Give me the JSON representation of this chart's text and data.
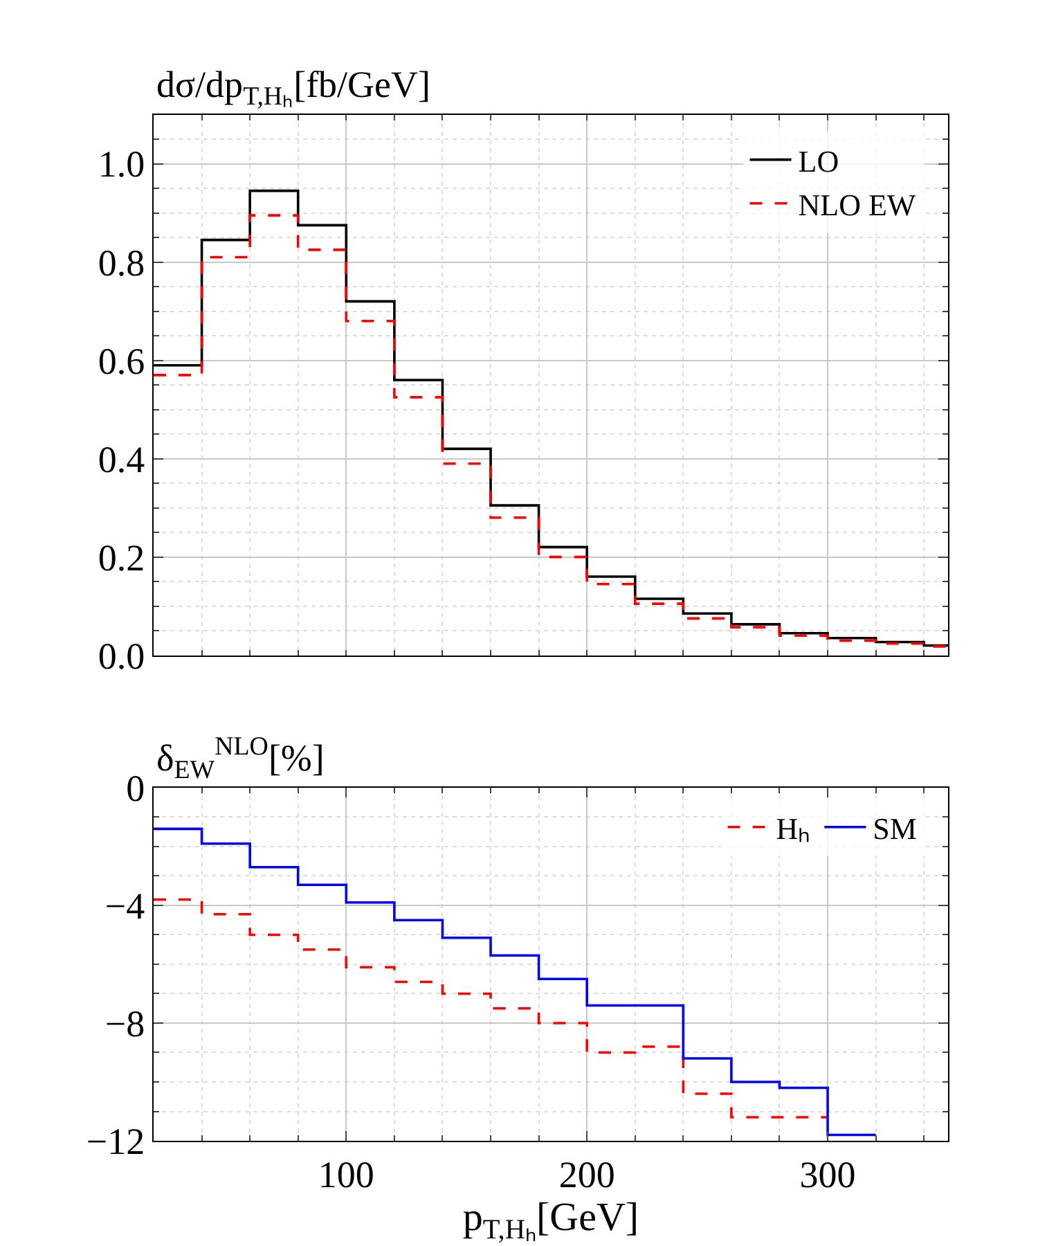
{
  "chart_data": [
    {
      "type": "step",
      "ylabel": "dσ/dp$_{T,Hₕ}$[fb/GeV]",
      "xlim": [
        20,
        350
      ],
      "xticks": [
        {
          "value": 100,
          "label": null
        },
        {
          "value": 200,
          "label": null
        },
        {
          "value": 300,
          "label": null
        }
      ],
      "ylim": [
        0,
        1.1
      ],
      "yticks": [
        {
          "value": 0,
          "label": "0.0"
        },
        {
          "value": 0.2,
          "label": "0.2"
        },
        {
          "value": 0.4,
          "label": "0.4"
        },
        {
          "value": 0.6,
          "label": "0.6"
        },
        {
          "value": 0.8,
          "label": "0.8"
        },
        {
          "value": 1.0,
          "label": "1.0"
        }
      ],
      "tick_labels": "y",
      "grid": true,
      "legend": "top right",
      "series": [
        {
          "name": "LO",
          "color": "#000000",
          "line_style": "solid",
          "x": [
            20,
            40,
            60,
            80,
            100,
            120,
            140,
            160,
            180,
            200,
            220,
            240,
            260,
            280,
            300,
            320,
            340,
            350
          ],
          "values": [
            0.59,
            0.845,
            0.945,
            0.875,
            0.72,
            0.56,
            0.42,
            0.305,
            0.22,
            0.16,
            0.115,
            0.085,
            0.063,
            0.045,
            0.035,
            0.027,
            0.02,
            0.02
          ]
        },
        {
          "name": "NLO EW",
          "color": "#ff0000",
          "line_style": "dashed",
          "x": [
            20,
            40,
            60,
            80,
            100,
            120,
            140,
            160,
            180,
            200,
            220,
            240,
            260,
            280,
            300,
            320,
            340,
            350
          ],
          "values": [
            0.57,
            0.81,
            0.895,
            0.825,
            0.68,
            0.525,
            0.39,
            0.28,
            0.2,
            0.145,
            0.105,
            0.075,
            0.057,
            0.04,
            0.03,
            0.024,
            0.018,
            0.018
          ]
        }
      ]
    },
    {
      "type": "step",
      "ylabel": "δ$_{EW}$$^{NLO}$[%]",
      "xlabel": "p$_{T,Hₕ}$[GeV]",
      "xlim": [
        20,
        350
      ],
      "xticks": [
        100,
        200,
        300
      ],
      "ylim": [
        -12,
        0
      ],
      "yticks": [
        {
          "value": -12,
          "label": "−12"
        },
        {
          "value": -8,
          "label": "−8"
        },
        {
          "value": -4,
          "label": "−4"
        },
        0
      ],
      "grid": true,
      "legend": "top right",
      "series": [
        {
          "name": "Hₕ",
          "color": "#ff0000",
          "line_style": "dashed",
          "x": [
            20,
            40,
            60,
            80,
            100,
            120,
            140,
            160,
            180,
            200,
            220,
            240,
            260,
            280,
            300
          ],
          "values": [
            -3.8,
            -4.3,
            -5.0,
            -5.5,
            -6.1,
            -6.6,
            -7.0,
            -7.5,
            -8.0,
            -9.0,
            -8.8,
            -10.4,
            -11.2,
            -11.2,
            -11.2
          ]
        },
        {
          "name": "SM",
          "color": "#0000ff",
          "line_style": "solid",
          "x": [
            20,
            40,
            60,
            80,
            100,
            120,
            140,
            160,
            180,
            200,
            220,
            240,
            260,
            280,
            300,
            320
          ],
          "values": [
            -1.4,
            -1.9,
            -2.7,
            -3.3,
            -3.9,
            -4.5,
            -5.1,
            -5.7,
            -6.5,
            -7.4,
            -7.4,
            -9.2,
            -10.0,
            -10.2,
            -11.8,
            -11.8
          ]
        }
      ]
    }
  ]
}
